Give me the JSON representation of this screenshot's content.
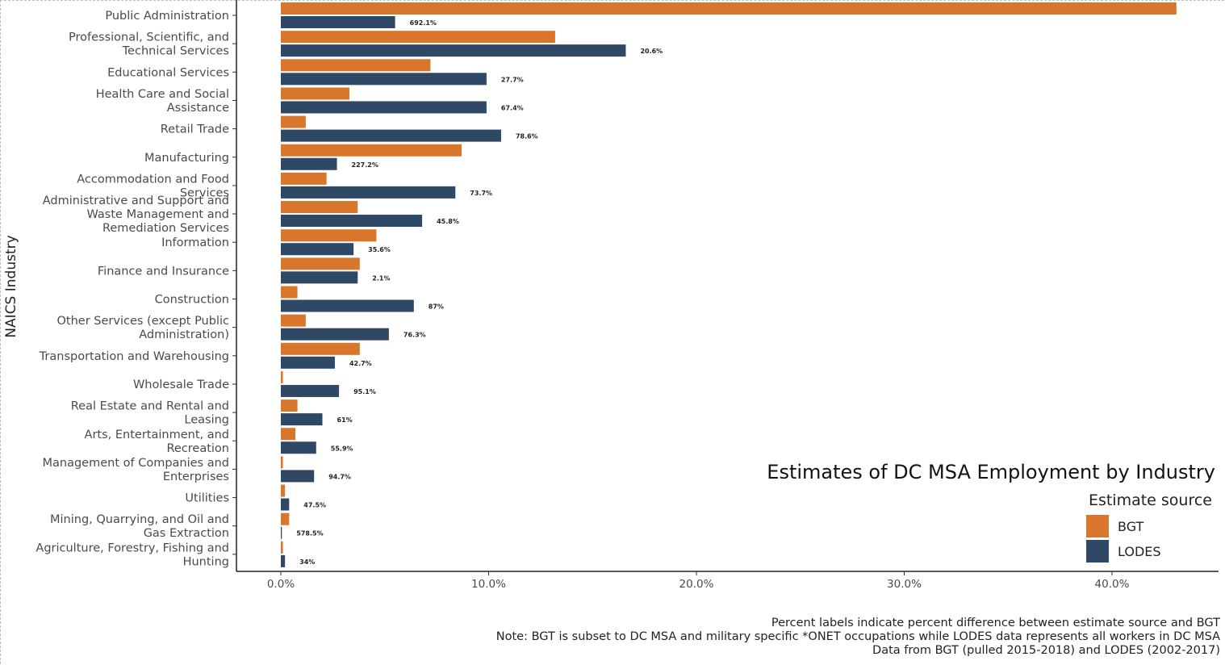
{
  "chart_data": {
    "type": "bar",
    "orientation": "horizontal",
    "title": "Estimates of DC MSA Employment by Industry",
    "ylabel": "NAICS Industry",
    "xlabel": "",
    "xlim": [
      -0.021,
      0.45
    ],
    "x_ticks": [
      {
        "value": 0,
        "label": "0.0%"
      },
      {
        "value": 0.1,
        "label": "10.0%"
      },
      {
        "value": 0.2,
        "label": "20.0%"
      },
      {
        "value": 0.3,
        "label": "30.0%"
      },
      {
        "value": 0.4,
        "label": "40.0%"
      }
    ],
    "grid": false,
    "legend": {
      "title": "Estimate source",
      "placement": "bottom-right"
    },
    "categories": [
      [
        "Public Administration"
      ],
      [
        "Professional, Scientific, and",
        "Technical Services"
      ],
      [
        "Educational Services"
      ],
      [
        "Health Care and Social",
        "Assistance"
      ],
      [
        "Retail Trade"
      ],
      [
        "Manufacturing"
      ],
      [
        "Accommodation and Food",
        "Services"
      ],
      [
        "Administrative and Support and",
        "Waste Management and",
        "Remediation Services"
      ],
      [
        "Information"
      ],
      [
        "Finance and Insurance"
      ],
      [
        "Construction"
      ],
      [
        "Other Services (except Public",
        "Administration)"
      ],
      [
        "Transportation and Warehousing"
      ],
      [
        "Wholesale Trade"
      ],
      [
        "Real Estate and Rental and",
        "Leasing"
      ],
      [
        "Arts, Entertainment, and",
        "Recreation"
      ],
      [
        "Management of Companies and",
        "Enterprises"
      ],
      [
        "Utilities"
      ],
      [
        "Mining, Quarrying, and Oil and",
        "Gas Extraction"
      ],
      [
        "Agriculture, Forestry, Fishing and",
        "Hunting"
      ]
    ],
    "series": [
      {
        "name": "BGT",
        "color": "#d8772c",
        "values": [
          0.431,
          0.132,
          0.072,
          0.033,
          0.012,
          0.087,
          0.022,
          0.037,
          0.046,
          0.038,
          0.008,
          0.012,
          0.038,
          0.001,
          0.008,
          0.007,
          0.001,
          0.002,
          0.004,
          0.001
        ]
      },
      {
        "name": "LODES",
        "color": "#2e4866",
        "values": [
          0.055,
          0.166,
          0.099,
          0.099,
          0.106,
          0.027,
          0.084,
          0.068,
          0.035,
          0.037,
          0.064,
          0.052,
          0.026,
          0.028,
          0.02,
          0.017,
          0.016,
          0.004,
          0.0005,
          0.002
        ]
      }
    ],
    "percent_labels": [
      "692.1%",
      "20.6%",
      "27.7%",
      "67.4%",
      "78.6%",
      "227.2%",
      "73.7%",
      "45.8%",
      "35.6%",
      "2.1%",
      "87%",
      "76.3%",
      "42.7%",
      "95.1%",
      "61%",
      "55.9%",
      "94.7%",
      "47.5%",
      "578.5%",
      "34%"
    ],
    "notes": [
      "Percent labels indicate percent difference between estimate source and BGT",
      "Note: BGT is subset to DC MSA and military specific *ONET occupations while LODES data represents all workers in DC MSA",
      "Data from BGT (pulled 2015-2018) and LODES (2002-2017)"
    ]
  }
}
